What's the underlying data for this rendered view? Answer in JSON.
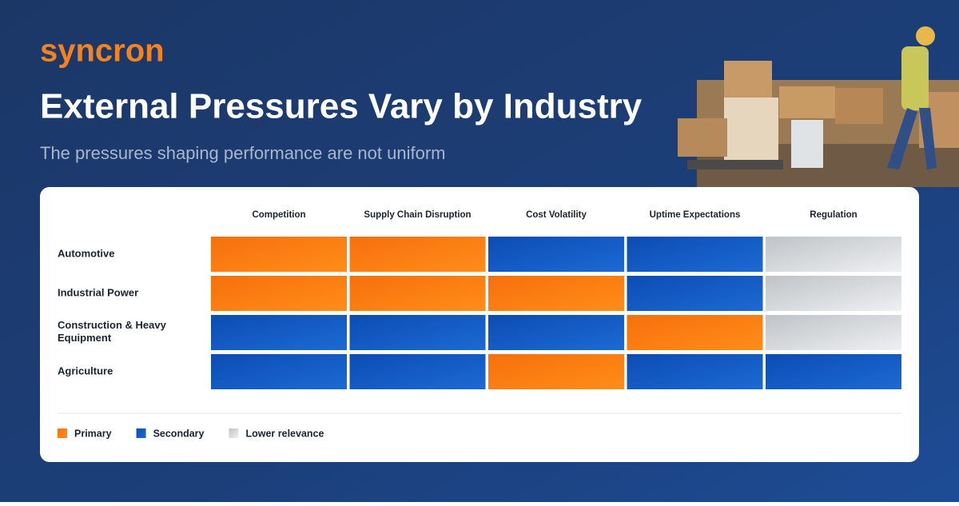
{
  "header": {
    "logo": "syncron",
    "title": "External Pressures Vary by Industry",
    "subtitle": "The pressures shaping performance are not uniform"
  },
  "table": {
    "columns": [
      "Competition",
      "Supply Chain Disruption",
      "Cost Volatility",
      "Uptime Expectations",
      "Regulation"
    ],
    "rows": [
      {
        "label": "Automotive",
        "cells": [
          "Primary",
          "Primary",
          "Secondary",
          "Secondary",
          "Lower relevance"
        ]
      },
      {
        "label": "Industrial Power",
        "cells": [
          "Primary",
          "Primary",
          "Primary",
          "Secondary",
          "Lower relevance"
        ]
      },
      {
        "label": "Construction & Heavy Equipment",
        "cells": [
          "Secondary",
          "Secondary",
          "Secondary",
          "Primary",
          "Lower relevance"
        ]
      },
      {
        "label": "Agriculture",
        "cells": [
          "Secondary",
          "Secondary",
          "Primary",
          "Secondary",
          "Secondary"
        ]
      }
    ]
  },
  "legend": [
    {
      "label": "Primary",
      "color": "#f97a10"
    },
    {
      "label": "Secondary",
      "color": "#1257c2"
    },
    {
      "label": "Lower relevance",
      "color": "#cfd3d7"
    }
  ]
}
